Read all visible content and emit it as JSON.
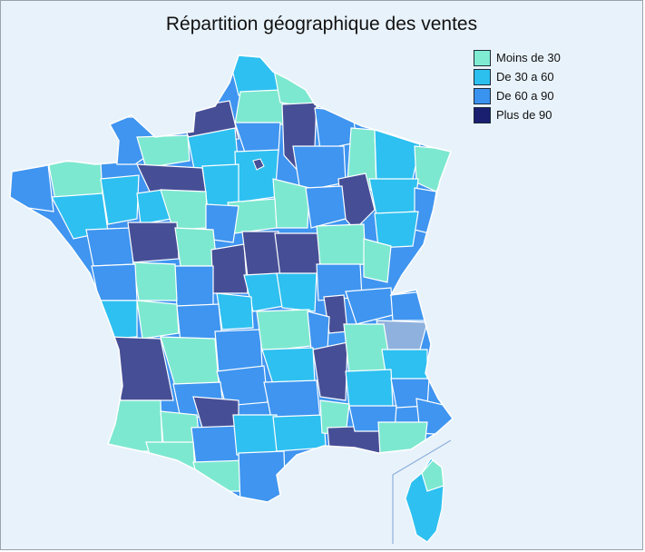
{
  "title": "Répartition géographique des ventes",
  "legend": [
    {
      "label": "Moins de 30",
      "color": "#7fecd2"
    },
    {
      "label": "De 30 a 60",
      "color": "#2cc0ef"
    },
    {
      "label": "De 60 a 90",
      "color": "#3b93f0"
    },
    {
      "label": "Plus de 90",
      "color": "#1a1f70"
    }
  ],
  "colors": {
    "background": "#e8f2fa",
    "moins_30": "#7de8d0",
    "de_30_60": "#2ec0f0",
    "de_60_90": "#3f95f0",
    "plus_90": "#464f96",
    "unclassified": "#8fb1dd",
    "border": "#ffffff"
  }
}
